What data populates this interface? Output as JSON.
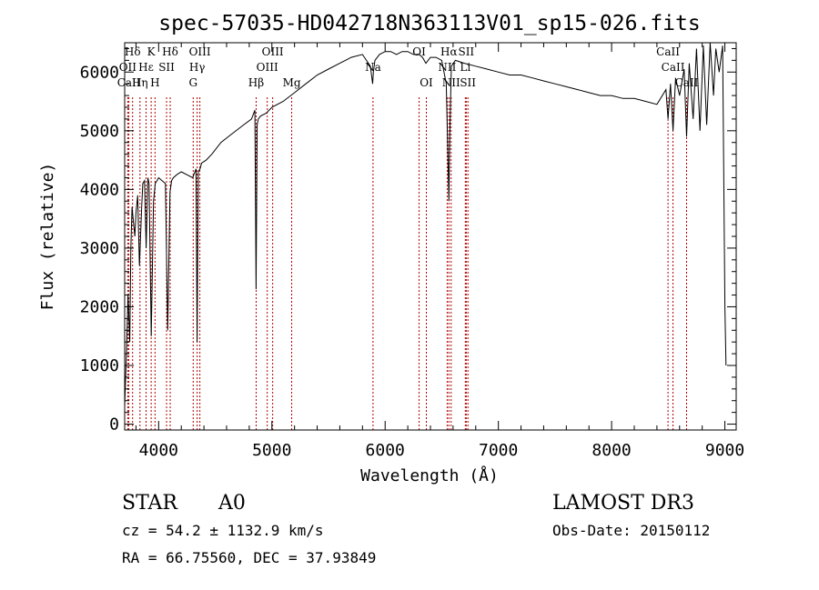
{
  "chart_data": {
    "type": "line",
    "title": "spec-57035-HD042718N363113V01_sp15-026.fits",
    "xlabel": "Wavelength (Å)",
    "ylabel": "Flux (relative)",
    "xlim": [
      3700,
      9100
    ],
    "ylim": [
      -100,
      6500
    ],
    "xticks": [
      4000,
      5000,
      6000,
      7000,
      8000,
      9000
    ],
    "yticks": [
      0,
      1000,
      2000,
      3000,
      4000,
      5000,
      6000
    ],
    "grid": false,
    "series": [
      {
        "x": [
          3700,
          3715,
          3730,
          3745,
          3755,
          3765,
          3775,
          3790,
          3800,
          3815,
          3830,
          3850,
          3860,
          3875,
          3890,
          3905,
          3915,
          3935,
          3955,
          3970,
          3985,
          4000,
          4030,
          4060,
          4080,
          4100,
          4115,
          4130,
          4160,
          4200,
          4250,
          4300,
          4330,
          4340,
          4350,
          4365,
          4380,
          4420,
          4470,
          4550,
          4650,
          4750,
          4820,
          4850,
          4860,
          4870,
          4880,
          4900,
          4950,
          5000,
          5100,
          5200,
          5300,
          5400,
          5500,
          5600,
          5700,
          5800,
          5870,
          5890,
          5896,
          5910,
          5950,
          6000,
          6050,
          6100,
          6150,
          6200,
          6250,
          6300,
          6330,
          6360,
          6400,
          6450,
          6500,
          6540,
          6555,
          6563,
          6570,
          6585,
          6620,
          6700,
          6800,
          6900,
          7000,
          7100,
          7200,
          7300,
          7400,
          7500,
          7600,
          7700,
          7800,
          7900,
          8000,
          8100,
          8200,
          8300,
          8400,
          8480,
          8498,
          8520,
          8542,
          8565,
          8600,
          8640,
          8662,
          8685,
          8720,
          8750,
          8780,
          8810,
          8840,
          8870,
          8900,
          8920,
          8950,
          8980,
          9000,
          9010
        ],
        "y": [
          300,
          1200,
          2200,
          1400,
          3000,
          3700,
          3500,
          3200,
          3600,
          3900,
          2700,
          3700,
          4100,
          4150,
          3000,
          4200,
          4100,
          1500,
          3800,
          4100,
          4150,
          4200,
          4150,
          4100,
          1600,
          3950,
          4150,
          4200,
          4250,
          4300,
          4250,
          4200,
          4350,
          1400,
          4300,
          4350,
          4450,
          4500,
          4600,
          4800,
          4950,
          5100,
          5200,
          5350,
          2300,
          5100,
          5200,
          5250,
          5300,
          5400,
          5500,
          5650,
          5800,
          5950,
          6050,
          6150,
          6250,
          6300,
          6100,
          5800,
          6000,
          6200,
          6300,
          6350,
          6350,
          6300,
          6350,
          6350,
          6300,
          6300,
          6250,
          6150,
          6250,
          6250,
          6200,
          5800,
          4500,
          3800,
          4900,
          6100,
          6200,
          6150,
          6100,
          6050,
          6000,
          5950,
          5950,
          5900,
          5850,
          5800,
          5750,
          5700,
          5650,
          5600,
          5600,
          5550,
          5550,
          5500,
          5450,
          5700,
          5200,
          5800,
          5000,
          5900,
          5600,
          6050,
          4900,
          6150,
          5200,
          6400,
          5000,
          6450,
          5100,
          6500,
          5600,
          6400,
          6000,
          6450,
          2000,
          1000
        ]
      }
    ],
    "reference_lines": [
      {
        "label": "Hδ",
        "x": 3770,
        "row": 1
      },
      {
        "label": "OII",
        "x": 3727,
        "row": 2
      },
      {
        "label": "CaII",
        "x": 3737,
        "row": 3
      },
      {
        "label": "Hη",
        "x": 3835,
        "row": 3
      },
      {
        "label": "Hε",
        "x": 3889,
        "row": 2
      },
      {
        "label": "K",
        "x": 3934,
        "row": 1
      },
      {
        "label": "H",
        "x": 3968,
        "row": 3
      },
      {
        "label": "SII",
        "x": 4070,
        "row": 2
      },
      {
        "label": "Hδ",
        "x": 4102,
        "row": 1
      },
      {
        "label": "OIII",
        "x": 4364,
        "row": 1
      },
      {
        "label": "Hγ",
        "x": 4340,
        "row": 2
      },
      {
        "label": "G",
        "x": 4305,
        "row": 3
      },
      {
        "label": "Hβ",
        "x": 4861,
        "row": 3
      },
      {
        "label": "OIII",
        "x": 5007,
        "row": 1
      },
      {
        "label": "OIII",
        "x": 4959,
        "row": 2
      },
      {
        "label": "Mg",
        "x": 5175,
        "row": 3
      },
      {
        "label": "Na",
        "x": 5893,
        "row": 2
      },
      {
        "label": "OI",
        "x": 6300,
        "row": 1
      },
      {
        "label": "OI",
        "x": 6364,
        "row": 3
      },
      {
        "label": "Hα",
        "x": 6563,
        "row": 1
      },
      {
        "label": "NII",
        "x": 6548,
        "row": 2
      },
      {
        "label": "NII",
        "x": 6583,
        "row": 3
      },
      {
        "label": "SII",
        "x": 6716,
        "row": 1
      },
      {
        "label": "Li",
        "x": 6708,
        "row": 2
      },
      {
        "label": "SII",
        "x": 6731,
        "row": 3
      },
      {
        "label": "CaII",
        "x": 8498,
        "row": 1
      },
      {
        "label": "CaII",
        "x": 8542,
        "row": 2
      },
      {
        "label": "CaII",
        "x": 8662,
        "row": 3
      }
    ]
  },
  "info": {
    "class": "STAR",
    "subclass": "A0",
    "survey": "LAMOST DR3",
    "cz": "cz = 54.2 ± 1132.9 km/s",
    "obs_date": "Obs-Date: 20150112",
    "radec": "RA =  66.75560, DEC =  37.93849"
  },
  "colors": {
    "spectrum": "#000000",
    "reference_line": "#b00000",
    "background": "#ffffff"
  }
}
